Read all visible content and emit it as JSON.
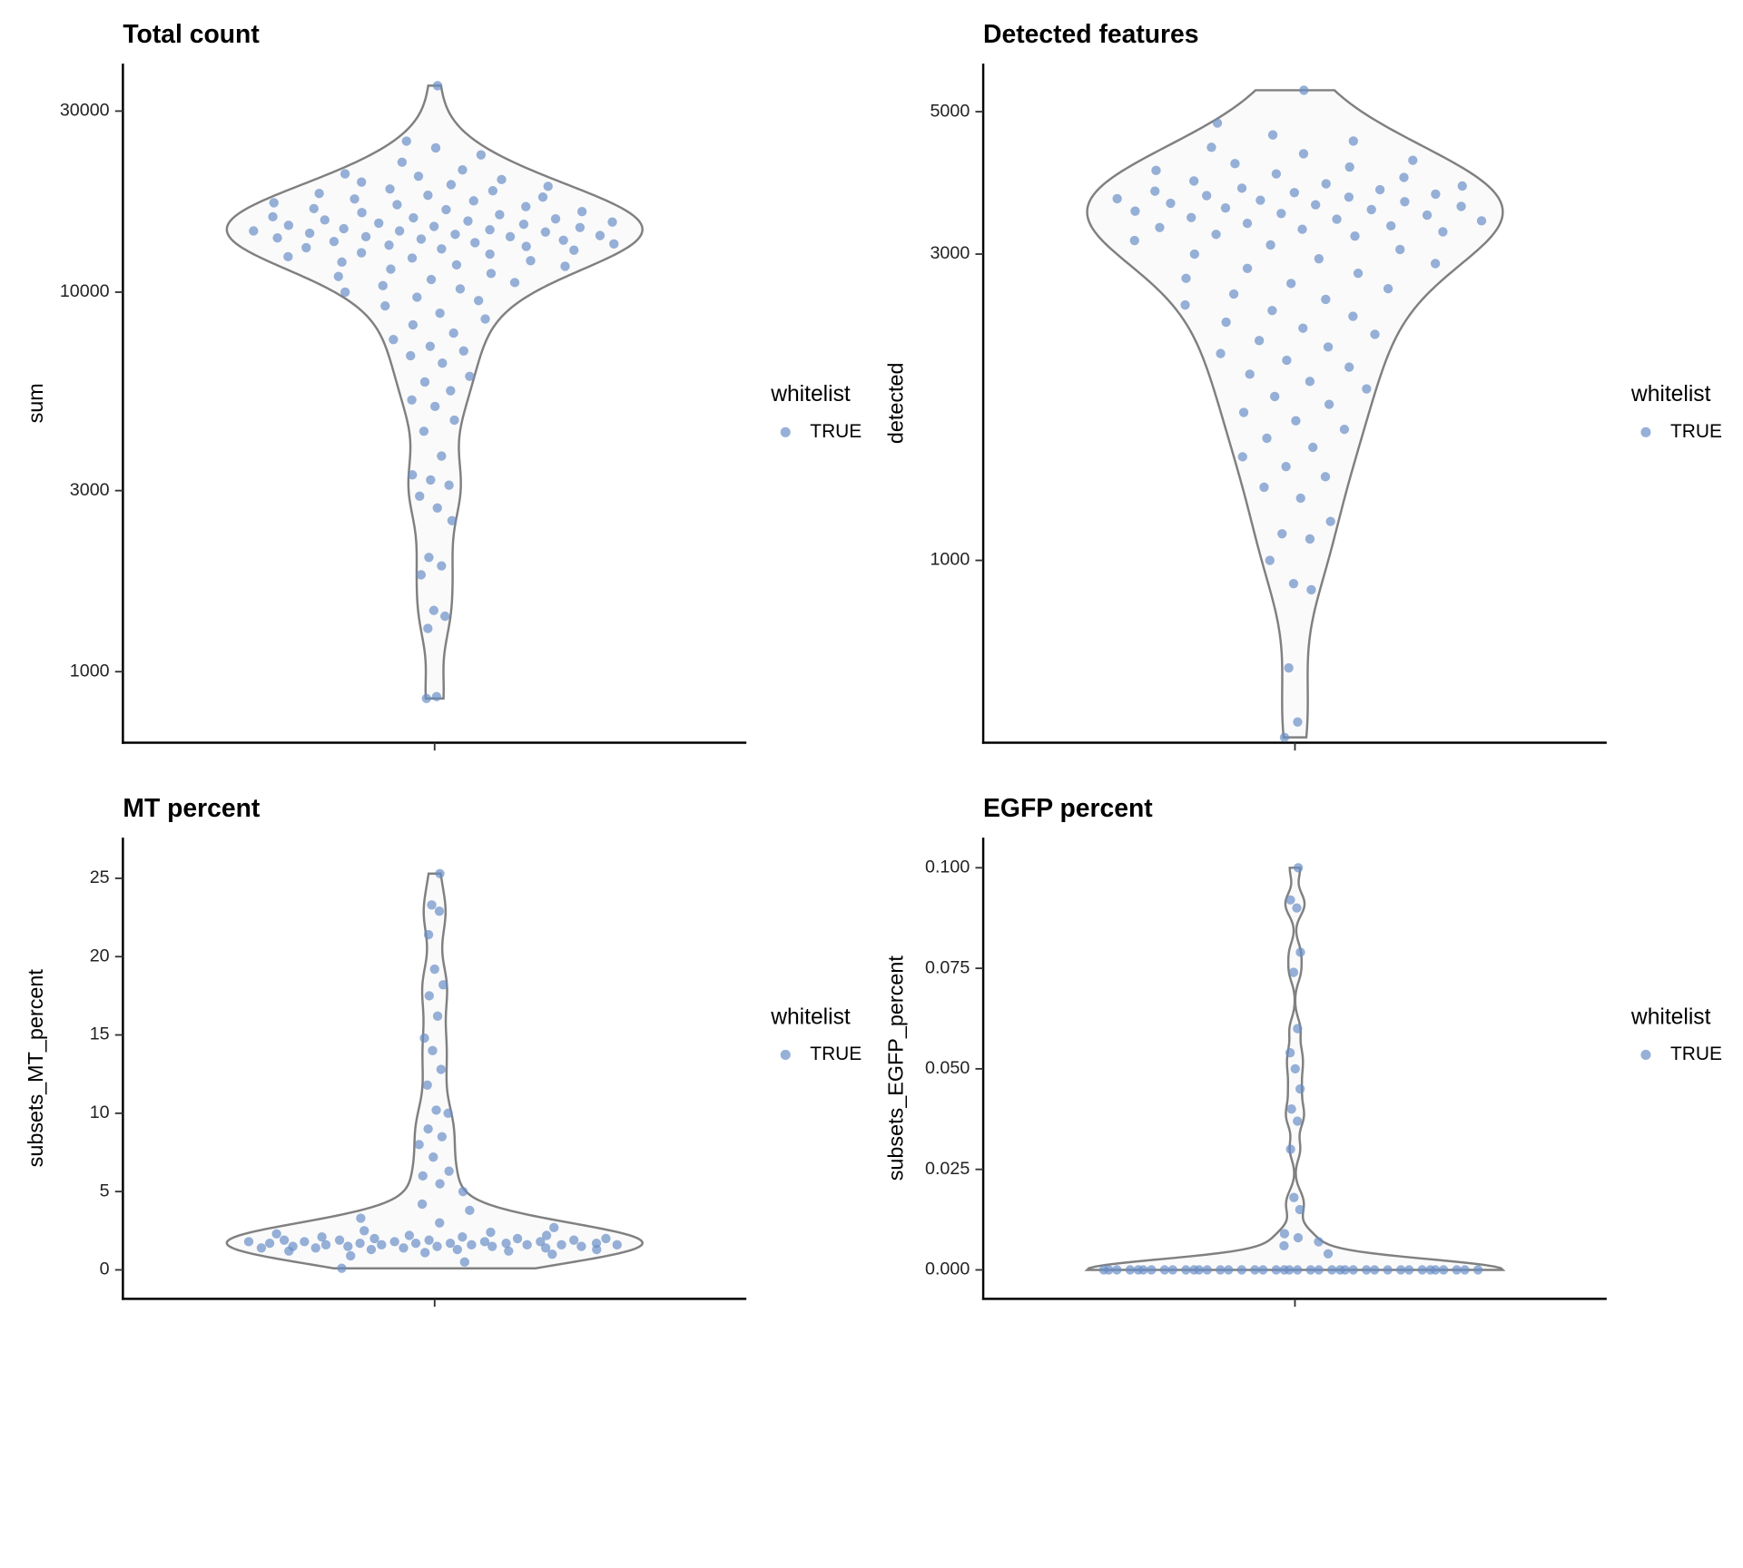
{
  "chart_data": [
    {
      "type": "violin",
      "title": "Total count",
      "y_label": "sum",
      "log_y": true,
      "ylim": [
        650,
        40000
      ],
      "yticks": [
        1000,
        3000,
        10000,
        30000
      ],
      "legend_title": "whitelist",
      "outline_color": "#808080",
      "series": [
        {
          "name": "TRUE",
          "color": "#6a8fc8",
          "values": [
            850,
            860,
            1300,
            1400,
            1450,
            1800,
            1900,
            2000,
            2500,
            2700,
            2900,
            3100,
            3200,
            3300,
            3700,
            4300,
            4600,
            5000,
            5200,
            5500,
            5800,
            6000,
            6500,
            6800,
            7000,
            7200,
            7500,
            7800,
            8200,
            8500,
            8800,
            9200,
            9500,
            9700,
            10000,
            10200,
            10400,
            10600,
            10800,
            11000,
            11200,
            11500,
            11700,
            11800,
            12000,
            12100,
            12300,
            12400,
            12600,
            12700,
            12900,
            13000,
            13100,
            13200,
            13300,
            13400,
            13500,
            13600,
            13700,
            13800,
            13900,
            14000,
            14000,
            14100,
            14200,
            14300,
            14400,
            14500,
            14500,
            14600,
            14700,
            14800,
            14900,
            15000,
            15100,
            15200,
            15300,
            15400,
            15500,
            15600,
            15700,
            15800,
            16000,
            16200,
            16300,
            16500,
            16600,
            16800,
            17000,
            17200,
            17400,
            17600,
            17800,
            18000,
            18200,
            18500,
            18700,
            19000,
            19200,
            19500,
            19800,
            20200,
            20500,
            21000,
            22000,
            23000,
            24000,
            25000,
            35000
          ]
        }
      ]
    },
    {
      "type": "violin",
      "title": "Detected features",
      "y_label": "detected",
      "log_y": true,
      "ylim": [
        520,
        5940
      ],
      "yticks": [
        1000,
        3000,
        5000
      ],
      "legend_title": "whitelist",
      "outline_color": "#808080",
      "series": [
        {
          "name": "TRUE",
          "color": "#6a8fc8",
          "values": [
            530,
            560,
            680,
            900,
            920,
            1000,
            1080,
            1100,
            1150,
            1250,
            1300,
            1350,
            1400,
            1450,
            1500,
            1550,
            1600,
            1650,
            1700,
            1750,
            1800,
            1850,
            1900,
            1950,
            2000,
            2050,
            2100,
            2150,
            2200,
            2250,
            2300,
            2350,
            2400,
            2450,
            2500,
            2550,
            2600,
            2650,
            2700,
            2750,
            2800,
            2850,
            2900,
            2950,
            3000,
            3050,
            3100,
            3150,
            3200,
            3220,
            3250,
            3280,
            3300,
            3320,
            3350,
            3380,
            3400,
            3420,
            3450,
            3470,
            3500,
            3520,
            3540,
            3560,
            3580,
            3600,
            3620,
            3640,
            3660,
            3680,
            3700,
            3720,
            3740,
            3760,
            3780,
            3800,
            3830,
            3860,
            3900,
            3950,
            4000,
            4050,
            4100,
            4150,
            4200,
            4300,
            4400,
            4500,
            4600,
            4800,
            5400
          ]
        }
      ]
    },
    {
      "type": "violin",
      "title": "MT percent",
      "y_label": "subsets_MT_percent",
      "log_y": false,
      "ylim": [
        -1.85,
        27.6
      ],
      "yticks": [
        0,
        5,
        10,
        15,
        20,
        25
      ],
      "legend_title": "whitelist",
      "outline_color": "#808080",
      "series": [
        {
          "name": "TRUE",
          "color": "#6a8fc8",
          "values": [
            0.1,
            0.5,
            0.9,
            1.0,
            1.1,
            1.2,
            1.2,
            1.3,
            1.3,
            1.3,
            1.4,
            1.4,
            1.4,
            1.4,
            1.5,
            1.5,
            1.5,
            1.5,
            1.5,
            1.6,
            1.6,
            1.6,
            1.6,
            1.6,
            1.6,
            1.7,
            1.7,
            1.7,
            1.7,
            1.7,
            1.7,
            1.8,
            1.8,
            1.8,
            1.8,
            1.8,
            1.9,
            1.9,
            1.9,
            1.9,
            2.0,
            2.0,
            2.0,
            2.1,
            2.1,
            2.2,
            2.2,
            2.3,
            2.4,
            2.5,
            2.7,
            3.0,
            3.3,
            3.8,
            4.2,
            5.0,
            5.5,
            6.0,
            6.3,
            7.2,
            8.0,
            8.5,
            9.0,
            10.0,
            10.2,
            11.8,
            12.8,
            14.0,
            14.8,
            16.2,
            17.5,
            18.2,
            19.2,
            21.4,
            22.9,
            23.3,
            25.3
          ]
        }
      ]
    },
    {
      "type": "violin",
      "title": "EGFP percent",
      "y_label": "subsets_EGFP_percent",
      "log_y": false,
      "ylim": [
        -0.0072,
        0.1075
      ],
      "yticks": [
        {
          "value": 0,
          "label": "0.000"
        },
        {
          "value": 0.025,
          "label": "0.025"
        },
        {
          "value": 0.05,
          "label": "0.050"
        },
        {
          "value": 0.075,
          "label": "0.075"
        },
        {
          "value": 0.1,
          "label": "0.100"
        }
      ],
      "legend_title": "whitelist",
      "outline_color": "#808080",
      "series": [
        {
          "name": "TRUE",
          "color": "#6a8fc8",
          "values": [
            0,
            0,
            0,
            0,
            0,
            0,
            0,
            0,
            0,
            0,
            0,
            0,
            0,
            0,
            0,
            0,
            0,
            0,
            0,
            0,
            0,
            0,
            0,
            0,
            0,
            0,
            0,
            0,
            0,
            0,
            0,
            0,
            0,
            0,
            0,
            0,
            0,
            0,
            0,
            0,
            0.004,
            0.006,
            0.007,
            0.008,
            0.009,
            0.015,
            0.018,
            0.03,
            0.037,
            0.04,
            0.045,
            0.05,
            0.054,
            0.06,
            0.074,
            0.079,
            0.09,
            0.092,
            0.1
          ]
        }
      ]
    }
  ]
}
